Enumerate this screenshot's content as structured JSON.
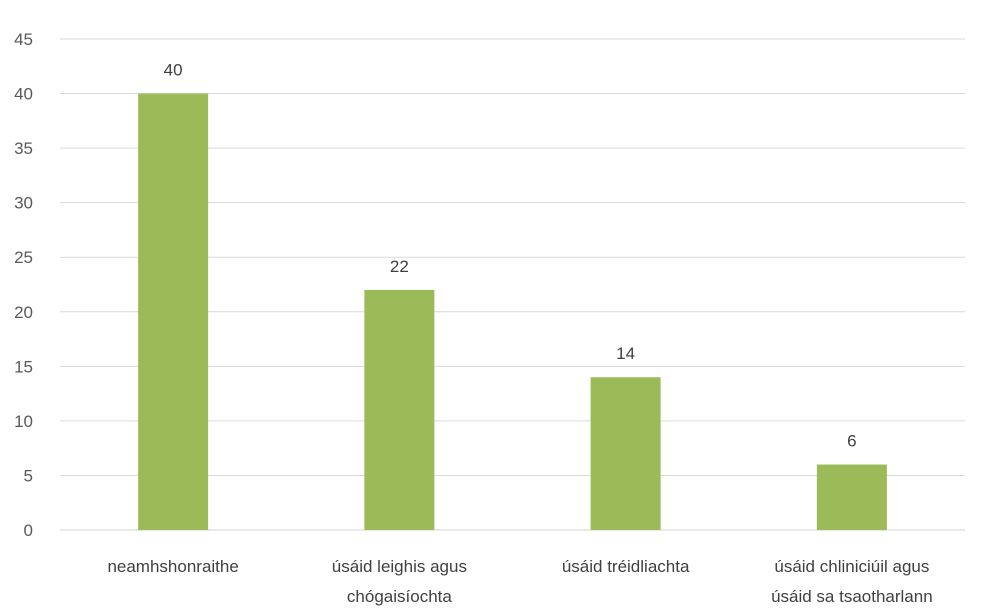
{
  "chart_data": {
    "type": "bar",
    "categories": [
      [
        "neamhshonraithe"
      ],
      [
        "úsáid leighis agus",
        "chógaisíochta"
      ],
      [
        "úsáid tréidliachta"
      ],
      [
        "úsáid chliniciúil agus",
        "úsáid sa tsaotharlann"
      ]
    ],
    "values": [
      40,
      22,
      14,
      6
    ],
    "y_ticks": [
      "0",
      "5",
      "10",
      "15",
      "20",
      "25",
      "30",
      "35",
      "40",
      "45"
    ],
    "ylim": [
      0,
      45
    ],
    "grid": true,
    "bar_color": "#9bbb59",
    "grid_color": "#d9d9d9",
    "legend": "none"
  }
}
